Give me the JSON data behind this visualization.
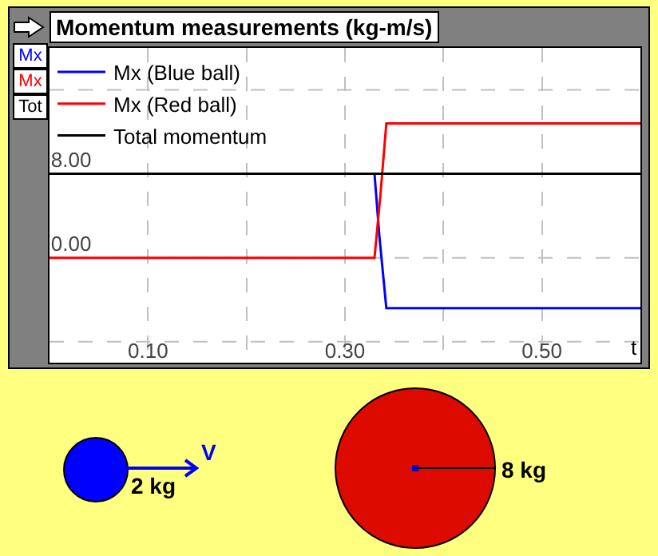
{
  "chart_data": {
    "type": "line",
    "title": "Momentum measurements (kg-m/s)",
    "xlabel": "t",
    "xlim": [
      0,
      0.6
    ],
    "ylim": [
      -10,
      20
    ],
    "xticks": [
      {
        "value": 0.1,
        "label": "0.10"
      },
      {
        "value": 0.2,
        "label": null
      },
      {
        "value": 0.3,
        "label": "0.30"
      },
      {
        "value": 0.4,
        "label": null
      },
      {
        "value": 0.5,
        "label": "0.50"
      }
    ],
    "yticks": [
      {
        "value": -8,
        "label": null
      },
      {
        "value": 0,
        "label": "0.00"
      },
      {
        "value": 8,
        "label": "8.00"
      },
      {
        "value": 16,
        "label": null
      }
    ],
    "grid": true,
    "legend": "top left",
    "marker": "none",
    "line_style": "solid",
    "series": [
      {
        "name": "Mx (Blue ball)",
        "color": "#0000ff",
        "x": [
          0.33,
          0.335,
          0.342,
          0.6
        ],
        "values": [
          8,
          2,
          -4.8,
          -4.8
        ]
      },
      {
        "name": "Mx (Red ball)",
        "color": "#ff0000",
        "x": [
          0,
          0.33,
          0.336,
          0.342,
          0.6
        ],
        "values": [
          0,
          0,
          6,
          12.8,
          12.8
        ]
      },
      {
        "name": "Total momentum",
        "color": "#000000",
        "x": [
          0,
          0.6
        ],
        "values": [
          8,
          8
        ]
      }
    ],
    "annotations": [
      "Mx",
      "Mx",
      "Tot",
      "V",
      "2 kg",
      "8 kg"
    ]
  }
}
